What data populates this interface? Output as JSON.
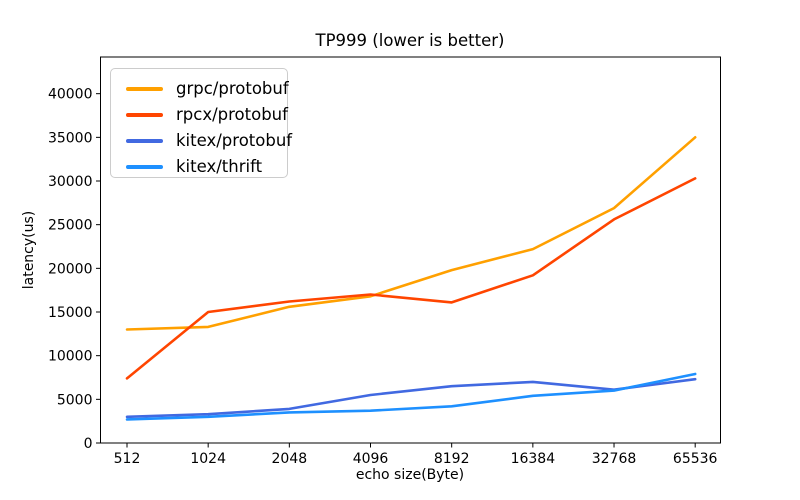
{
  "chart_data": {
    "type": "line",
    "title": "TP999 (lower is better)",
    "xlabel": "echo size(Byte)",
    "ylabel": "latency(us)",
    "categories": [
      "512",
      "1024",
      "2048",
      "4096",
      "8192",
      "16384",
      "32768",
      "65536"
    ],
    "y_ticks": [
      0,
      5000,
      10000,
      15000,
      20000,
      25000,
      30000,
      35000,
      40000
    ],
    "ylim": [
      0,
      44200
    ],
    "grid": false,
    "legend_position": "upper-left",
    "series": [
      {
        "name": "grpc/protobuf",
        "color": "#FFA000",
        "values": [
          13000,
          13300,
          15600,
          16800,
          19800,
          22200,
          26900,
          35000
        ]
      },
      {
        "name": "rpcx/protobuf",
        "color": "#FF4500",
        "values": [
          7400,
          15000,
          16200,
          17000,
          16100,
          19200,
          25600,
          30300
        ]
      },
      {
        "name": "kitex/protobuf",
        "color": "#4169E1",
        "values": [
          3000,
          3300,
          3900,
          5500,
          6500,
          7000,
          6100,
          7300
        ]
      },
      {
        "name": "kitex/thrift",
        "color": "#1E90FF",
        "values": [
          2700,
          3000,
          3500,
          3700,
          4200,
          5400,
          6000,
          7900
        ]
      }
    ]
  }
}
